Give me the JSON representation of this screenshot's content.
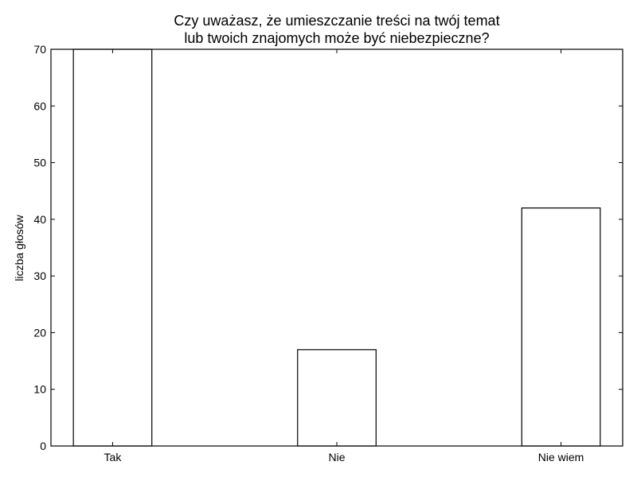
{
  "chart_data": {
    "type": "bar",
    "title_lines": [
      "Czy uważasz, że umieszczanie treści na twój temat",
      "lub twoich znajomych może być niebezpieczne?"
    ],
    "xlabel": "",
    "ylabel": "liczba głosów",
    "categories": [
      "Tak",
      "Nie",
      "Nie wiem"
    ],
    "values": [
      70,
      17,
      42
    ],
    "ylim": [
      0,
      70
    ],
    "yticks": [
      0,
      10,
      20,
      30,
      40,
      50,
      60,
      70
    ],
    "bar_fill": "#ffffff",
    "bar_edge": "#000000",
    "grid": false
  }
}
